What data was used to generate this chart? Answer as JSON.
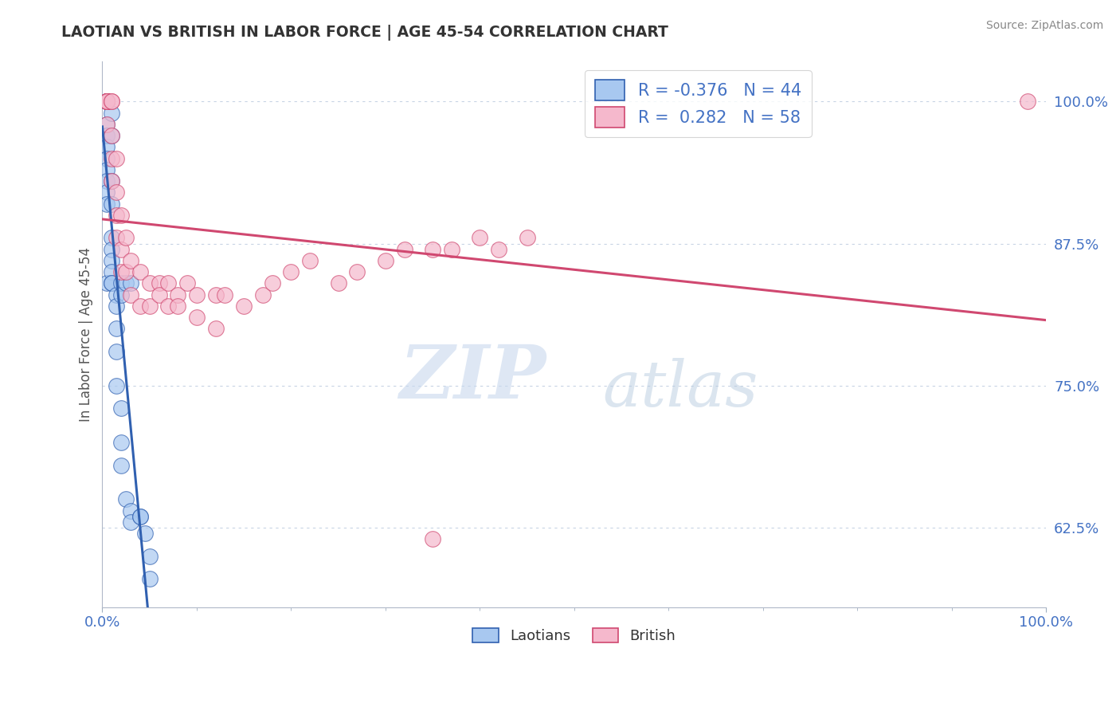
{
  "title": "LAOTIAN VS BRITISH IN LABOR FORCE | AGE 45-54 CORRELATION CHART",
  "source": "Source: ZipAtlas.com",
  "ylabel": "In Labor Force | Age 45-54",
  "legend_labels": [
    "Laotians",
    "British"
  ],
  "legend_r": [
    -0.376,
    0.282
  ],
  "legend_n": [
    44,
    58
  ],
  "scatter_color_laotian": "#a8c8f0",
  "scatter_color_british": "#f5b8cc",
  "line_color_laotian": "#3060b0",
  "line_color_british": "#d04870",
  "line_color_overall": "#c0c8d8",
  "watermark_zip": "ZIP",
  "watermark_atlas": "atlas",
  "xlim": [
    0.0,
    1.0
  ],
  "ylim": [
    0.555,
    1.035
  ],
  "yticks": [
    0.625,
    0.75,
    0.875,
    1.0
  ],
  "ytick_labels": [
    "62.5%",
    "75.0%",
    "87.5%",
    "100.0%"
  ],
  "xticks": [
    0.0,
    1.0
  ],
  "xtick_labels": [
    "0.0%",
    "100.0%"
  ],
  "laotian_x": [
    0.005,
    0.005,
    0.005,
    0.005,
    0.005,
    0.005,
    0.005,
    0.005,
    0.005,
    0.005,
    0.005,
    0.005,
    0.005,
    0.005,
    0.01,
    0.01,
    0.01,
    0.01,
    0.01,
    0.01,
    0.01,
    0.01,
    0.01,
    0.01,
    0.015,
    0.015,
    0.015,
    0.015,
    0.015,
    0.02,
    0.02,
    0.02,
    0.025,
    0.03,
    0.03,
    0.04,
    0.04,
    0.045,
    0.05,
    0.05,
    0.02,
    0.02,
    0.025,
    0.03
  ],
  "laotian_y": [
    1.0,
    1.0,
    1.0,
    1.0,
    1.0,
    0.98,
    0.97,
    0.96,
    0.95,
    0.94,
    0.93,
    0.92,
    0.91,
    0.84,
    0.99,
    0.97,
    0.93,
    0.91,
    0.88,
    0.87,
    0.86,
    0.85,
    0.84,
    0.84,
    0.83,
    0.82,
    0.8,
    0.78,
    0.75,
    0.73,
    0.7,
    0.68,
    0.65,
    0.64,
    0.63,
    0.635,
    0.635,
    0.62,
    0.6,
    0.58,
    0.84,
    0.83,
    0.84,
    0.84
  ],
  "british_x": [
    0.005,
    0.005,
    0.005,
    0.005,
    0.005,
    0.005,
    0.005,
    0.005,
    0.005,
    0.005,
    0.01,
    0.01,
    0.01,
    0.01,
    0.01,
    0.015,
    0.015,
    0.015,
    0.015,
    0.02,
    0.02,
    0.02,
    0.025,
    0.025,
    0.03,
    0.03,
    0.04,
    0.04,
    0.05,
    0.05,
    0.06,
    0.06,
    0.07,
    0.07,
    0.08,
    0.08,
    0.09,
    0.1,
    0.1,
    0.12,
    0.12,
    0.13,
    0.15,
    0.17,
    0.18,
    0.2,
    0.22,
    0.25,
    0.27,
    0.3,
    0.32,
    0.35,
    0.37,
    0.4,
    0.42,
    0.45,
    0.35,
    0.98
  ],
  "british_y": [
    1.0,
    1.0,
    1.0,
    1.0,
    1.0,
    1.0,
    1.0,
    1.0,
    1.0,
    0.98,
    1.0,
    1.0,
    0.97,
    0.95,
    0.93,
    0.95,
    0.92,
    0.9,
    0.88,
    0.9,
    0.87,
    0.85,
    0.88,
    0.85,
    0.86,
    0.83,
    0.85,
    0.82,
    0.84,
    0.82,
    0.84,
    0.83,
    0.84,
    0.82,
    0.83,
    0.82,
    0.84,
    0.83,
    0.81,
    0.83,
    0.8,
    0.83,
    0.82,
    0.83,
    0.84,
    0.85,
    0.86,
    0.84,
    0.85,
    0.86,
    0.87,
    0.87,
    0.87,
    0.88,
    0.87,
    0.88,
    0.615,
    1.0
  ]
}
